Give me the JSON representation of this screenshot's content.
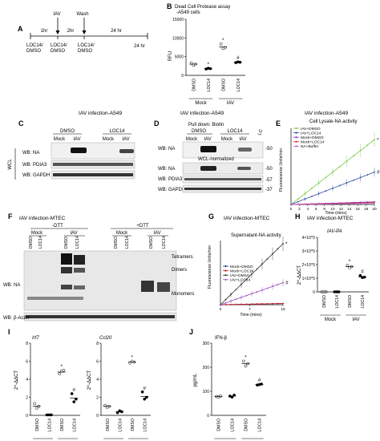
{
  "panel_letters": [
    "A",
    "B",
    "C",
    "D",
    "E",
    "F",
    "G",
    "H",
    "I",
    "J"
  ],
  "panelA": {
    "letter": "A",
    "time_labels": [
      "1hr",
      "IAV",
      "2hr",
      "Wash",
      "24 hr",
      "24 hr"
    ],
    "treatment_labels": [
      "LOC14/\nDMSO",
      "LOC14/\nDMSO",
      "LOC14/\nDMSO"
    ]
  },
  "panelB": {
    "letter": "B",
    "title": "Dead Cell Protease assay\n-A549 cells",
    "ylabel": "RFU",
    "group_labels": [
      "Mock",
      "IAV"
    ]
  },
  "panelC": {
    "letter": "C",
    "title": "IAV infection-A549",
    "treatments": [
      "DMSO",
      "LOC14"
    ],
    "lanes": [
      "Mock",
      "IAV",
      "Mock",
      "IAV"
    ],
    "side_label": "WCL",
    "rows": [
      "WB: NA",
      "WB: PDIA3",
      "WB: GAPDH"
    ]
  },
  "panelD": {
    "letter": "D",
    "title": "IAV infection-A549",
    "subtitle": "Pull down: Biotin",
    "treatments": [
      "DMSO",
      "LOC14"
    ],
    "lanes": [
      "Mock",
      "IAV",
      "Mock",
      "IAV"
    ],
    "lc_label": "LC",
    "rows": [
      "WB: NA",
      "WB: PDIA3",
      "WB: GAPDH"
    ],
    "normalized_label": "WCL-normalized",
    "mw": [
      "-50",
      "-50",
      "-57",
      "-37"
    ]
  },
  "panelE": {
    "letter": "E",
    "title": "IAV infection-A549",
    "subtitle": "Cell Lysate-NA activity",
    "ylabel": "Fluorescence Units/min",
    "xlabel": "Time (mins)",
    "legend": [
      "IAV+DMSO",
      "IAV+LOC14",
      "Mock+DMSO",
      "Mock+LOC14",
      "NA+Buffer"
    ],
    "colors": [
      "#7ac943",
      "#2e4ea3",
      "#8a2be2",
      "#e41a1c",
      "#c060c0"
    ]
  },
  "panelF": {
    "letter": "F",
    "title": "IAV infection-MTEC",
    "conditions": [
      "-DTT",
      "+DTT"
    ],
    "groups": [
      "Mock",
      "IAV",
      "Mock",
      "IAV"
    ],
    "lanes": [
      "DMSO",
      "LOC14",
      "DMSO",
      "LOC14",
      "DMSO",
      "LOC14",
      "DMSO",
      "LOC14"
    ],
    "band_labels": [
      "Tetramers",
      "Dimers",
      "Monomers"
    ],
    "rows": [
      "WB: NA",
      "WB: β-Actin"
    ]
  },
  "panelG": {
    "letter": "G",
    "title": "IAV infection-MTEC",
    "subtitle": "Supernatant-NA activity",
    "ylabel": "Fluorescence Units/min",
    "xlabel": "Time (mins)",
    "legend": [
      "Mock+DMSO",
      "Mock+LOC14",
      "IAV+DMSO",
      "IAV+LOC14"
    ],
    "colors": [
      "#1f3a93",
      "#d7191c",
      "#333333",
      "#9b4fc0"
    ]
  },
  "panelH": {
    "letter": "H",
    "title": "IAV infection-MTEC",
    "gene": "IAV-PA",
    "ylabel": "2^-ΔΔCT",
    "group_labels": [
      "Mock",
      "IAV"
    ]
  },
  "panelI": {
    "letter": "I",
    "genes": [
      "Irf7",
      "Ccl20"
    ],
    "ylabel": "2^-ΔΔCT",
    "group_labels": [
      "Mock",
      "IAV"
    ]
  },
  "panelJ": {
    "letter": "J",
    "title": "IFN-β",
    "ylabel": "pg/mL",
    "group_labels": [
      "Mock",
      "IAV"
    ]
  },
  "xlabels": [
    "DMSO",
    "LOC14",
    "DMSO",
    "LOC14"
  ],
  "chart_data": [
    {
      "id": "B",
      "type": "scatter",
      "title": "Dead Cell Protease assay -A549 cells",
      "ylabel": "RFU",
      "yticks": [
        "0",
        "5000",
        "10000",
        "15000"
      ],
      "ylim": [
        0,
        15000
      ],
      "categories": [
        "DMSO",
        "LOC14",
        "DMSO",
        "LOC14"
      ],
      "means": [
        3000,
        1800,
        7600,
        3500
      ],
      "points": [
        [
          3300,
          2700,
          3000
        ],
        [
          1700,
          1900,
          1800
        ],
        [
          8400,
          7200,
          7400
        ],
        [
          3400,
          3600,
          3500
        ]
      ],
      "significance": [
        "",
        "*",
        "*",
        "#"
      ]
    },
    {
      "id": "E",
      "type": "line",
      "title": "Cell Lysate-NA activity",
      "xlabel": "Time (mins)",
      "ylabel": "Fluorescence Units/min",
      "xticks": [
        "0",
        "2",
        "4",
        "6",
        "8",
        "10",
        "12",
        "14",
        "16",
        "18",
        "20"
      ],
      "xlim": [
        0,
        20
      ],
      "series": [
        {
          "name": "IAV+DMSO",
          "slope": 1.0,
          "marker": "*"
        },
        {
          "name": "IAV+LOC14",
          "slope": 0.5,
          "marker": "#"
        },
        {
          "name": "Mock+DMSO",
          "slope": 0.04
        },
        {
          "name": "Mock+LOC14",
          "slope": 0.03
        },
        {
          "name": "NA+Buffer",
          "slope": 0.02
        }
      ]
    },
    {
      "id": "G",
      "type": "line",
      "title": "Supernatant-NA activity",
      "xlabel": "Time (mins)",
      "ylabel": "Fluorescence Units/min",
      "xticks": [
        "0",
        "7",
        "15"
      ],
      "xlim": [
        0,
        15
      ],
      "series": [
        {
          "name": "Mock+DMSO",
          "slope": 0.02
        },
        {
          "name": "Mock+LOC14",
          "slope": 0.02
        },
        {
          "name": "IAV+DMSO",
          "slope": 1.0,
          "marker": "*"
        },
        {
          "name": "IAV+LOC14",
          "slope": 0.36,
          "marker": "#"
        }
      ]
    },
    {
      "id": "H",
      "type": "scatter",
      "title": "IAV-PA",
      "ylabel": "2^-ΔΔCT",
      "yticks": [
        "0",
        "1×10^5",
        "2×10^5",
        "3×10^5",
        "4×10^5"
      ],
      "ylim": [
        0,
        400000
      ],
      "categories": [
        "DMSO",
        "LOC14",
        "DMSO",
        "LOC14"
      ],
      "means": [
        0,
        0,
        185000,
        110000
      ],
      "points": [
        [
          0,
          0,
          0
        ],
        [
          0,
          0,
          0
        ],
        [
          195000,
          178000,
          185000
        ],
        [
          120000,
          105000,
          108000
        ]
      ],
      "significance": [
        "",
        "",
        "*",
        "#"
      ]
    },
    {
      "id": "I-Irf7",
      "type": "scatter",
      "title": "Irf7",
      "ylabel": "2^-ΔΔCT",
      "yticks": [
        "0",
        "2",
        "4",
        "6",
        "8"
      ],
      "ylim": [
        0,
        8
      ],
      "categories": [
        "DMSO",
        "LOC14",
        "DMSO",
        "LOC14"
      ],
      "means": [
        1.0,
        0.05,
        4.8,
        1.9
      ],
      "points": [
        [
          1.3,
          0.8,
          1.0
        ],
        [
          0.05,
          0.05,
          0.05
        ],
        [
          4.6,
          4.9,
          5.0
        ],
        [
          2.4,
          1.5,
          1.8
        ]
      ],
      "significance": [
        "",
        "",
        "*",
        "#"
      ]
    },
    {
      "id": "I-Ccl20",
      "type": "scatter",
      "title": "Ccl20",
      "ylabel": "2^-ΔΔCT",
      "yticks": [
        "0",
        "2",
        "4",
        "6",
        "8"
      ],
      "ylim": [
        0,
        8
      ],
      "categories": [
        "DMSO",
        "LOC14",
        "DMSO",
        "LOC14"
      ],
      "means": [
        1.0,
        0.4,
        5.9,
        2.1
      ],
      "points": [
        [
          1.1,
          0.9,
          1.0
        ],
        [
          0.3,
          0.5,
          0.4
        ],
        [
          5.8,
          6.0,
          5.9
        ],
        [
          2.6,
          1.8,
          2.0
        ]
      ],
      "significance": [
        "",
        "",
        "*",
        "#"
      ]
    },
    {
      "id": "J",
      "type": "scatter",
      "title": "IFN-β",
      "ylabel": "pg/mL",
      "yticks": [
        "0",
        "100",
        "200",
        "300"
      ],
      "ylim": [
        0,
        300
      ],
      "categories": [
        "DMSO",
        "LOC14",
        "DMSO",
        "LOC14"
      ],
      "means": [
        78,
        80,
        215,
        128
      ],
      "points": [
        [
          78,
          76,
          80
        ],
        [
          80,
          76,
          84
        ],
        [
          225,
          205,
          215
        ],
        [
          126,
          128,
          130
        ]
      ],
      "significance": [
        "",
        "",
        "*",
        "#"
      ]
    }
  ]
}
